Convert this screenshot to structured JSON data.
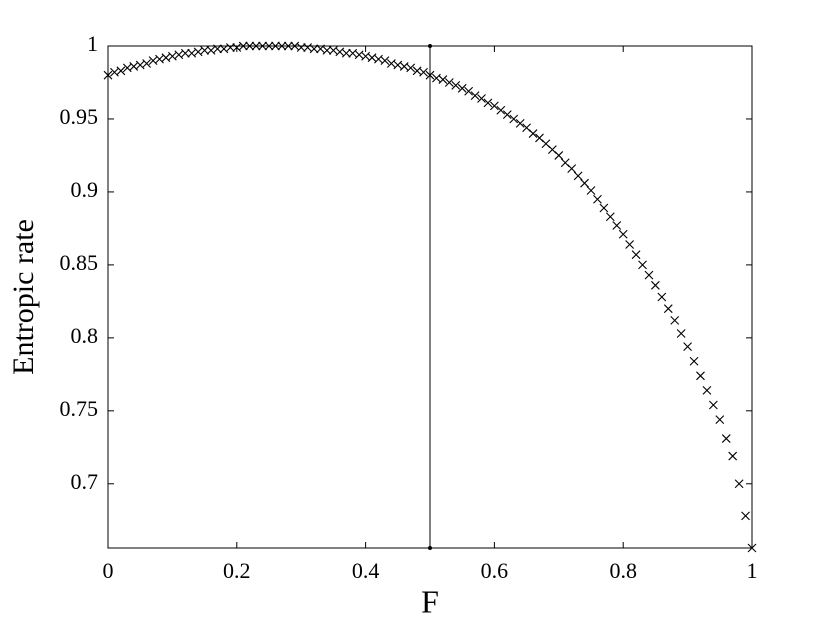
{
  "chart_data": {
    "type": "scatter",
    "marker": "x",
    "color": "#000000",
    "xlabel": "F",
    "ylabel": "Entropic rate",
    "xlim": [
      0,
      1
    ],
    "ylim": [
      0.656,
      1
    ],
    "xticks": [
      0,
      0.2,
      0.4,
      0.6,
      0.8,
      1
    ],
    "yticks": [
      0.7,
      0.75,
      0.8,
      0.85,
      0.9,
      0.95,
      1
    ],
    "grid": false,
    "vline": 0.5,
    "x": [
      0,
      0.01,
      0.02,
      0.03,
      0.04,
      0.05,
      0.06,
      0.07,
      0.08,
      0.09,
      0.1,
      0.11,
      0.12,
      0.13,
      0.14,
      0.15,
      0.16,
      0.17,
      0.18,
      0.19,
      0.2,
      0.21,
      0.22,
      0.23,
      0.24,
      0.25,
      0.26,
      0.27,
      0.28,
      0.29,
      0.3,
      0.31,
      0.32,
      0.33,
      0.34,
      0.35,
      0.36,
      0.37,
      0.38,
      0.39,
      0.4,
      0.41,
      0.42,
      0.43,
      0.44,
      0.45,
      0.46,
      0.47,
      0.48,
      0.49,
      0.5,
      0.51,
      0.52,
      0.53,
      0.54,
      0.55,
      0.56,
      0.57,
      0.58,
      0.59,
      0.6,
      0.61,
      0.62,
      0.63,
      0.64,
      0.65,
      0.66,
      0.67,
      0.68,
      0.69,
      0.7,
      0.71,
      0.72,
      0.73,
      0.74,
      0.75,
      0.76,
      0.77,
      0.78,
      0.79,
      0.8,
      0.81,
      0.82,
      0.83,
      0.84,
      0.85,
      0.86,
      0.87,
      0.88,
      0.89,
      0.9,
      0.91,
      0.92,
      0.93,
      0.94,
      0.95,
      0.96,
      0.97,
      0.98,
      0.99,
      1
    ],
    "values": [
      0.98,
      0.982,
      0.983,
      0.985,
      0.986,
      0.987,
      0.988,
      0.99,
      0.991,
      0.992,
      0.993,
      0.994,
      0.995,
      0.995,
      0.996,
      0.997,
      0.997,
      0.998,
      0.998,
      0.999,
      0.999,
      1.0,
      1.0,
      1.0,
      1.0,
      1.0,
      1.0,
      1.0,
      1.0,
      1.0,
      0.999,
      0.999,
      0.998,
      0.998,
      0.997,
      0.997,
      0.996,
      0.995,
      0.995,
      0.994,
      0.993,
      0.992,
      0.991,
      0.99,
      0.988,
      0.987,
      0.986,
      0.985,
      0.983,
      0.982,
      0.98,
      0.978,
      0.977,
      0.975,
      0.973,
      0.971,
      0.969,
      0.966,
      0.964,
      0.961,
      0.959,
      0.956,
      0.953,
      0.95,
      0.947,
      0.944,
      0.94,
      0.937,
      0.933,
      0.929,
      0.925,
      0.92,
      0.916,
      0.911,
      0.906,
      0.901,
      0.895,
      0.889,
      0.883,
      0.877,
      0.871,
      0.864,
      0.857,
      0.85,
      0.843,
      0.836,
      0.828,
      0.82,
      0.812,
      0.803,
      0.794,
      0.784,
      0.774,
      0.764,
      0.754,
      0.744,
      0.731,
      0.719,
      0.7,
      0.678,
      0.656
    ]
  }
}
